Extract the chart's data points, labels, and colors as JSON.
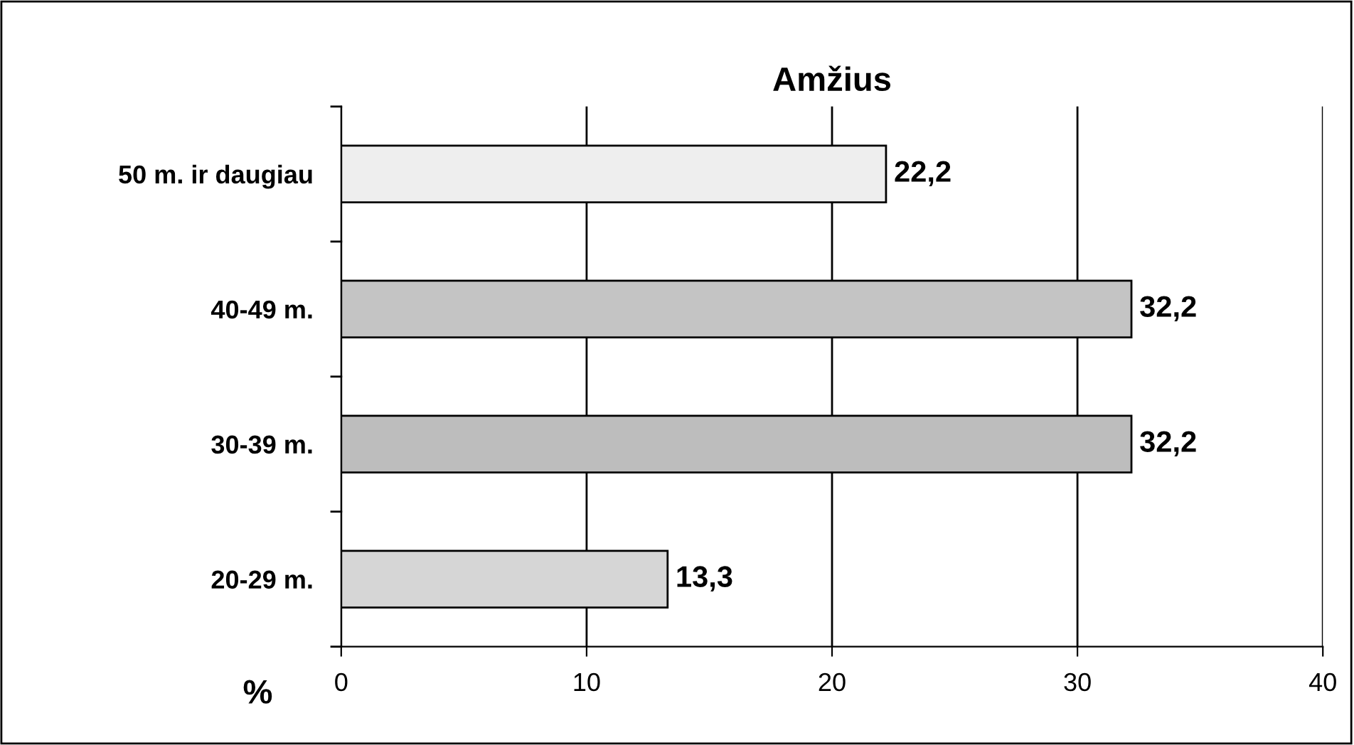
{
  "chart_data": {
    "type": "bar",
    "orientation": "horizontal",
    "title": "Amžius",
    "xlabel": "%",
    "categories": [
      "50 m. ir daugiau",
      "40-49 m.",
      "30-39 m.",
      "20-29 m."
    ],
    "values": [
      22.2,
      32.2,
      32.2,
      13.3
    ],
    "value_labels": [
      "22,2",
      "32,2",
      "32,2",
      "13,3"
    ],
    "colors": [
      "#eeeeee",
      "#c4c4c4",
      "#bdbdbd",
      "#d6d6d6"
    ],
    "xlim": [
      0,
      40
    ],
    "xticks": [
      0,
      10,
      20,
      30,
      40
    ],
    "grid": "x",
    "legend": false
  }
}
